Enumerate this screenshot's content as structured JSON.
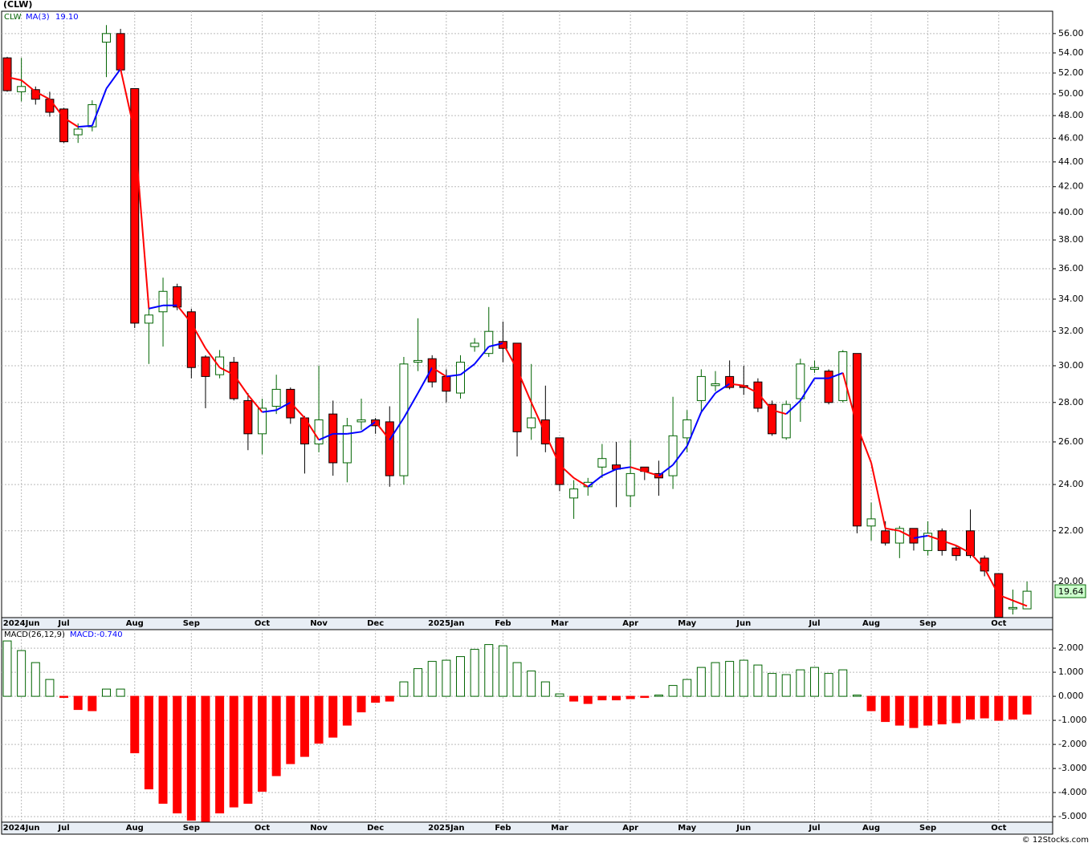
{
  "chart_data": [
    {
      "type": "candlestick",
      "title": "(CLW)",
      "symbol": "CLW",
      "categories": [
        null,
        "2024Jun",
        null,
        null,
        "Jul",
        null,
        null,
        null,
        null,
        "Aug",
        null,
        null,
        null,
        "Sep",
        null,
        null,
        null,
        null,
        "Oct",
        null,
        null,
        null,
        "Nov",
        null,
        null,
        null,
        "Dec",
        null,
        null,
        null,
        null,
        "2025Jan",
        null,
        null,
        null,
        "Feb",
        null,
        null,
        null,
        "Mar",
        null,
        null,
        null,
        null,
        "Apr",
        null,
        null,
        null,
        "May",
        null,
        null,
        null,
        "Jun",
        null,
        null,
        null,
        null,
        "Jul",
        null,
        null,
        null,
        "Aug",
        null,
        null,
        null,
        "Sep",
        null,
        null,
        null,
        null,
        "Oct",
        null,
        null
      ],
      "open": [
        53.5,
        50.2,
        50.4,
        49.5,
        48.6,
        46.3,
        47.0,
        55.1,
        56.0,
        50.5,
        32.5,
        33.2,
        34.8,
        33.2,
        30.5,
        29.5,
        30.2,
        28.1,
        26.4,
        27.8,
        28.7,
        27.2,
        25.9,
        27.4,
        25.0,
        27.0,
        27.1,
        27.0,
        24.4,
        30.2,
        30.4,
        29.4,
        28.5,
        31.1,
        30.7,
        31.4,
        31.3,
        26.7,
        27.1,
        26.2,
        23.4,
        23.9,
        24.8,
        24.9,
        23.5,
        24.8,
        24.5,
        24.4,
        26.2,
        28.1,
        28.9,
        29.4,
        28.9,
        29.1,
        27.9,
        26.2,
        28.2,
        29.8,
        29.7,
        28.1,
        30.7,
        22.2,
        22.0,
        21.5,
        22.1,
        21.2,
        22.0,
        21.3,
        22.0,
        20.9,
        20.3,
        19.0,
        19.0
      ],
      "high": [
        53.6,
        53.5,
        50.7,
        50.2,
        48.7,
        47.3,
        49.4,
        56.9,
        56.5,
        50.5,
        33.7,
        35.4,
        35.0,
        33.4,
        30.6,
        30.9,
        30.5,
        28.5,
        28.2,
        29.5,
        28.8,
        27.3,
        30.0,
        28.1,
        27.2,
        28.2,
        27.2,
        27.8,
        30.5,
        32.8,
        30.6,
        29.8,
        30.6,
        31.6,
        33.5,
        32.6,
        31.3,
        30.1,
        28.9,
        26.2,
        24.2,
        24.3,
        25.9,
        26.0,
        26.1,
        24.8,
        25.1,
        28.3,
        27.6,
        29.8,
        29.7,
        30.3,
        30.0,
        29.3,
        28.1,
        28.1,
        30.4,
        30.3,
        29.8,
        30.9,
        30.7,
        23.2,
        22.4,
        22.2,
        22.1,
        22.4,
        22.1,
        21.4,
        22.9,
        21.0,
        20.3,
        19.7,
        20.0
      ],
      "low": [
        50.2,
        49.3,
        49.0,
        47.9,
        45.6,
        45.6,
        46.6,
        51.6,
        52.2,
        32.2,
        30.1,
        31.1,
        33.3,
        29.3,
        27.7,
        29.3,
        28.1,
        25.6,
        25.4,
        27.4,
        26.9,
        24.5,
        25.5,
        24.4,
        24.1,
        26.6,
        26.4,
        23.9,
        24.0,
        29.7,
        28.8,
        28.0,
        28.2,
        30.8,
        30.5,
        30.2,
        25.3,
        26.1,
        25.5,
        23.7,
        22.5,
        23.5,
        24.3,
        23.0,
        23.0,
        24.2,
        23.5,
        23.8,
        25.5,
        27.5,
        28.6,
        28.7,
        28.4,
        27.5,
        26.3,
        26.1,
        27.0,
        29.6,
        27.9,
        28.0,
        21.9,
        21.6,
        21.4,
        20.9,
        21.2,
        21.0,
        21.0,
        20.8,
        20.9,
        20.2,
        18.7,
        18.8,
        19.0
      ],
      "close": [
        50.3,
        50.7,
        49.5,
        48.3,
        45.7,
        46.8,
        49.0,
        56.0,
        52.3,
        32.5,
        33.0,
        34.5,
        33.5,
        29.9,
        29.4,
        30.5,
        28.2,
        26.4,
        27.7,
        28.7,
        27.2,
        25.9,
        27.1,
        25.0,
        26.8,
        27.1,
        26.8,
        24.4,
        30.1,
        30.3,
        29.1,
        28.6,
        30.2,
        31.3,
        32.0,
        31.0,
        26.5,
        27.2,
        25.9,
        24.0,
        23.8,
        24.1,
        25.2,
        24.7,
        24.5,
        24.6,
        24.3,
        26.3,
        27.1,
        29.4,
        29.0,
        28.8,
        28.8,
        27.7,
        26.4,
        27.9,
        30.1,
        29.9,
        28.0,
        30.8,
        22.2,
        22.5,
        21.5,
        22.1,
        21.5,
        21.9,
        21.2,
        21.0,
        21.0,
        20.4,
        18.7,
        19.05,
        19.64
      ],
      "up_color": "#ffffff",
      "down_color": "#ff0000",
      "up_edge": "#006400",
      "down_edge": "#000000",
      "ma": {
        "name": "MA(3)",
        "value_label": "19.10",
        "up_color": "#0000ff",
        "down_color": "#ff0000",
        "values": [
          51.6,
          51.3,
          50.2,
          49.5,
          47.8,
          47.0,
          47.1,
          50.5,
          52.4,
          46.5,
          33.4,
          33.6,
          33.6,
          32.5,
          31.0,
          29.9,
          29.5,
          28.4,
          27.5,
          27.6,
          28.0,
          27.2,
          26.1,
          26.4,
          26.4,
          26.5,
          27.0,
          26.1,
          27.2,
          28.5,
          29.9,
          29.4,
          29.5,
          30.1,
          31.1,
          31.3,
          29.8,
          28.0,
          26.4,
          24.9,
          24.3,
          23.9,
          24.4,
          24.7,
          24.8,
          24.6,
          24.4,
          24.9,
          25.8,
          27.5,
          28.5,
          29.0,
          28.9,
          28.5,
          27.6,
          27.4,
          28.1,
          29.3,
          29.3,
          29.6,
          26.8,
          25.0,
          22.1,
          22.0,
          21.7,
          21.8,
          21.6,
          21.4,
          21.1,
          20.5,
          19.5,
          19.3,
          19.1
        ]
      },
      "log_scale": true,
      "grid": true,
      "ylim": [
        18.69,
        58.4
      ],
      "yticks": [
        {
          "value": 20,
          "label": "20.00"
        },
        {
          "value": 22,
          "label": "22.00"
        },
        {
          "value": 24,
          "label": "24.00"
        },
        {
          "value": 26,
          "label": "26.00"
        },
        {
          "value": 28,
          "label": "28.00"
        },
        {
          "value": 30,
          "label": "30.00"
        },
        {
          "value": 32,
          "label": "32.00"
        },
        {
          "value": 34,
          "label": "34.00"
        },
        {
          "value": 36,
          "label": "36.00"
        },
        {
          "value": 38,
          "label": "38.00"
        },
        {
          "value": 40,
          "label": "40.00"
        },
        {
          "value": 42,
          "label": "42.00"
        },
        {
          "value": 44,
          "label": "44.00"
        },
        {
          "value": 46,
          "label": "46.00"
        },
        {
          "value": 48,
          "label": "48.00"
        },
        {
          "value": 50,
          "label": "50.00"
        },
        {
          "value": 52,
          "label": "52.00"
        },
        {
          "value": 54,
          "label": "54.00"
        },
        {
          "value": 56,
          "label": "56.00"
        }
      ]
    },
    {
      "type": "bar",
      "title": "MACD(26,12,9)",
      "subtitle": "MACD:-0.740",
      "categories": [
        null,
        "2024Jun",
        null,
        null,
        "Jul",
        null,
        null,
        null,
        null,
        "Aug",
        null,
        null,
        null,
        "Sep",
        null,
        null,
        null,
        null,
        "Oct",
        null,
        null,
        null,
        "Nov",
        null,
        null,
        null,
        "Dec",
        null,
        null,
        null,
        null,
        "2025Jan",
        null,
        null,
        null,
        "Feb",
        null,
        null,
        null,
        "Mar",
        null,
        null,
        null,
        null,
        "Apr",
        null,
        null,
        null,
        "May",
        null,
        null,
        null,
        "Jun",
        null,
        null,
        null,
        null,
        "Jul",
        null,
        null,
        null,
        "Aug",
        null,
        null,
        null,
        "Sep",
        null,
        null,
        null,
        null,
        "Oct",
        null,
        null
      ],
      "values": [
        2.3,
        1.9,
        1.4,
        0.7,
        -0.05,
        -0.55,
        -0.6,
        0.3,
        0.3,
        -2.35,
        -3.85,
        -4.45,
        -4.85,
        -5.15,
        -5.2,
        -4.85,
        -4.6,
        -4.45,
        -3.95,
        -3.3,
        -2.8,
        -2.5,
        -1.95,
        -1.7,
        -1.2,
        -0.65,
        -0.25,
        -0.2,
        0.6,
        1.15,
        1.45,
        1.5,
        1.65,
        1.95,
        2.15,
        2.1,
        1.4,
        1.05,
        0.6,
        0.1,
        -0.2,
        -0.3,
        -0.15,
        -0.15,
        -0.1,
        -0.05,
        0.05,
        0.45,
        0.7,
        1.2,
        1.4,
        1.45,
        1.5,
        1.3,
        0.95,
        0.9,
        1.1,
        1.2,
        0.95,
        1.1,
        0.05,
        -0.6,
        -1.05,
        -1.2,
        -1.3,
        -1.2,
        -1.15,
        -1.1,
        -0.95,
        -0.9,
        -1.0,
        -0.95,
        -0.74
      ],
      "pos_color": "#ffffff",
      "pos_edge": "#006400",
      "neg_color": "#ff0000",
      "grid": true,
      "ylim": [
        -5.23,
        2.77
      ],
      "yticks": [
        {
          "value": 2,
          "label": "2.000"
        },
        {
          "value": 1,
          "label": "1.000"
        },
        {
          "value": 0,
          "label": "0.000"
        },
        {
          "value": -1,
          "label": "-1.000"
        },
        {
          "value": -2,
          "label": "-2.000"
        },
        {
          "value": -3,
          "label": "-3.000"
        },
        {
          "value": -4,
          "label": "-4.000"
        },
        {
          "value": -5,
          "label": "-5.000"
        }
      ]
    }
  ],
  "footer": "© 12Stocks.com"
}
